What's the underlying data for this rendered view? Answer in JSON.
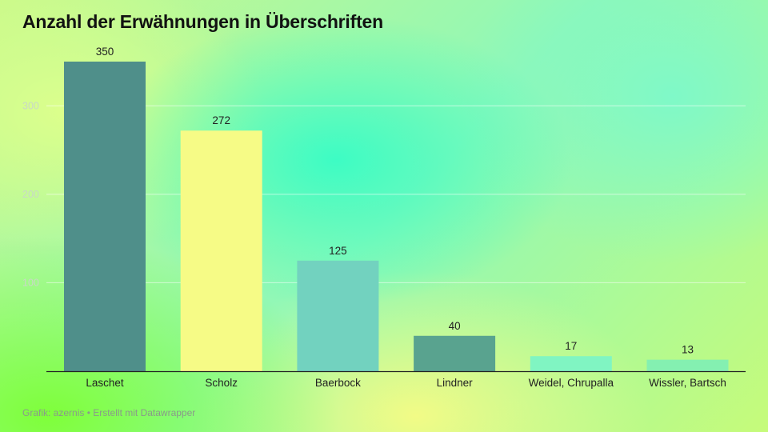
{
  "title": "Anzahl der Erwähnungen in Überschriften",
  "footer": "Grafik: azernis • Erstellt mit Datawrapper",
  "chart_data": {
    "type": "bar",
    "title": "Anzahl der Erwähnungen in Überschriften",
    "xlabel": "",
    "ylabel": "",
    "categories": [
      "Laschet",
      "Scholz",
      "Baerbock",
      "Lindner",
      "Weidel, Chrupalla",
      "Wissler, Bartsch"
    ],
    "values": [
      350,
      272,
      125,
      40,
      17,
      13
    ],
    "value_labels": [
      "350",
      "272",
      "125",
      "40",
      "17",
      "13"
    ],
    "colors": [
      "#4f8f8a",
      "#f6fb86",
      "#72d2bf",
      "#59a38f",
      "#80f5c2",
      "#84f0b1"
    ],
    "yticks": [
      100,
      200,
      300
    ],
    "ytick_labels": [
      "100",
      "200",
      "300"
    ],
    "ylim": [
      0,
      350
    ],
    "grid": true,
    "legend": "none"
  }
}
